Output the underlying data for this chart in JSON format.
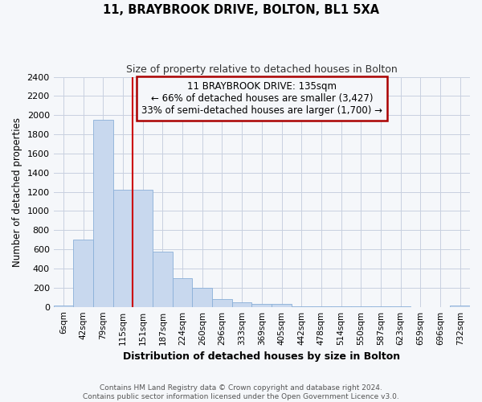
{
  "title1": "11, BRAYBROOK DRIVE, BOLTON, BL1 5XA",
  "title2": "Size of property relative to detached houses in Bolton",
  "xlabel": "Distribution of detached houses by size in Bolton",
  "ylabel": "Number of detached properties",
  "categories": [
    "6sqm",
    "42sqm",
    "79sqm",
    "115sqm",
    "151sqm",
    "187sqm",
    "224sqm",
    "260sqm",
    "296sqm",
    "333sqm",
    "369sqm",
    "405sqm",
    "442sqm",
    "478sqm",
    "514sqm",
    "550sqm",
    "587sqm",
    "623sqm",
    "659sqm",
    "696sqm",
    "732sqm"
  ],
  "values": [
    15,
    700,
    1950,
    1225,
    1225,
    575,
    300,
    200,
    80,
    50,
    35,
    30,
    5,
    5,
    5,
    5,
    3,
    2,
    1,
    1,
    12
  ],
  "bar_color": "#c8d8ee",
  "bar_edge_color": "#8ab0d8",
  "vline_color": "#cc0000",
  "annotation_title": "11 BRAYBROOK DRIVE: 135sqm",
  "annotation_line1": "← 66% of detached houses are smaller (3,427)",
  "annotation_line2": "33% of semi-detached houses are larger (1,700) →",
  "annotation_box_color": "#aa0000",
  "ylim": [
    0,
    2400
  ],
  "yticks": [
    0,
    200,
    400,
    600,
    800,
    1000,
    1200,
    1400,
    1600,
    1800,
    2000,
    2200,
    2400
  ],
  "footer": "Contains HM Land Registry data © Crown copyright and database right 2024.\nContains public sector information licensed under the Open Government Licence v3.0.",
  "bg_color": "#f5f7fa",
  "grid_color": "#c8d0e0"
}
